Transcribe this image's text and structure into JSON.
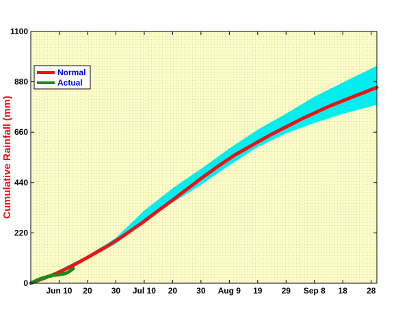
{
  "chart_data": {
    "type": "line",
    "title": "",
    "ylabel": "Cumulative Rainfall (mm)",
    "xlabel": "",
    "ylim": [
      0,
      1100
    ],
    "xlim": [
      0,
      122
    ],
    "y_ticks": [
      0,
      220,
      440,
      660,
      880,
      1100
    ],
    "x_ticks": [
      {
        "x": 10,
        "label": "Jun 10"
      },
      {
        "x": 20,
        "label": "20"
      },
      {
        "x": 30,
        "label": "30"
      },
      {
        "x": 40,
        "label": "Jul 10"
      },
      {
        "x": 50,
        "label": "20"
      },
      {
        "x": 60,
        "label": "30"
      },
      {
        "x": 70,
        "label": "Aug 9"
      },
      {
        "x": 80,
        "label": "19"
      },
      {
        "x": 90,
        "label": "29"
      },
      {
        "x": 100,
        "label": "Sep 8"
      },
      {
        "x": 110,
        "label": "18"
      },
      {
        "x": 120,
        "label": "28"
      }
    ],
    "legend": {
      "placement": "top-left",
      "entries": [
        {
          "label": "Normal",
          "color": "#ee1111"
        },
        {
          "label": "Actual",
          "color": "#1a8a1a"
        }
      ]
    },
    "colors": {
      "background": "#fbfbc8",
      "grid_dots": "#d6d69a",
      "band": "#00eeee",
      "normal": "#ee1111",
      "actual": "#1a8a1a",
      "ylabel": "#ee1111",
      "legend_text": "#0000ee"
    },
    "series": [
      {
        "name": "Normal",
        "x": [
          0,
          3,
          6,
          9,
          12,
          15,
          18,
          21,
          24,
          27,
          30,
          33,
          36,
          39,
          42,
          45,
          48,
          51,
          54,
          57,
          60,
          63,
          66,
          69,
          72,
          75,
          78,
          81,
          84,
          87,
          90,
          93,
          96,
          99,
          102,
          105,
          108,
          111,
          114,
          117,
          120,
          122
        ],
        "values": [
          0,
          14,
          28,
          42,
          60,
          79,
          99,
          120,
          141,
          162,
          186,
          210,
          236,
          262,
          290,
          318,
          345,
          373,
          401,
          429,
          458,
          484,
          511,
          536,
          561,
          582,
          603,
          624,
          645,
          664,
          683,
          702,
          721,
          738,
          755,
          772,
          787,
          802,
          817,
          831,
          846,
          855
        ]
      },
      {
        "name": "Actual",
        "x": [
          0,
          2,
          4,
          6,
          8,
          10,
          12,
          13,
          14,
          15
        ],
        "values": [
          0,
          12,
          22,
          29,
          35,
          37,
          42,
          47,
          55,
          65
        ]
      }
    ],
    "band": {
      "name": "",
      "x": [
        0,
        10,
        20,
        30,
        40,
        50,
        60,
        70,
        80,
        90,
        100,
        110,
        122
      ],
      "lower": [
        0,
        52,
        106,
        172,
        268,
        352,
        430,
        515,
        595,
        655,
        700,
        740,
        780
      ],
      "upper": [
        0,
        58,
        120,
        198,
        318,
        415,
        500,
        589,
        671,
        741,
        815,
        877,
        950
      ]
    }
  }
}
